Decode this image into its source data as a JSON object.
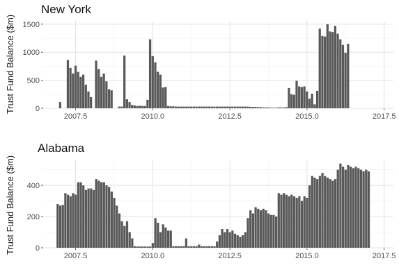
{
  "chart_data": [
    {
      "type": "bar",
      "title": "New York",
      "ylabel": "Trust Fund Balance ($m)",
      "xlabel": "",
      "xlim": [
        2006.45,
        2017.8
      ],
      "ylim": [
        0,
        1560
      ],
      "x_ticks": [
        2007.5,
        2010.0,
        2012.5,
        2015.0,
        2017.5
      ],
      "x_tick_labels": [
        "2007.5",
        "2010.0",
        "2012.5",
        "2015.0",
        "2017.5"
      ],
      "y_ticks": [
        0,
        500,
        1000,
        1500
      ],
      "y_tick_labels": [
        "0",
        "500",
        "1000",
        "1500"
      ],
      "grid": true,
      "bar_color": "#595959",
      "x_start": 2007.0,
      "x_step": 0.0833,
      "values": [
        110,
        0,
        0,
        860,
        720,
        620,
        760,
        650,
        560,
        600,
        420,
        300,
        200,
        0,
        850,
        700,
        560,
        620,
        480,
        340,
        320,
        0,
        0,
        30,
        30,
        940,
        160,
        110,
        60,
        50,
        40,
        45,
        40,
        40,
        150,
        1230,
        930,
        820,
        650,
        600,
        370,
        380,
        40,
        35,
        35,
        30,
        30,
        30,
        30,
        30,
        30,
        30,
        30,
        30,
        30,
        30,
        30,
        30,
        30,
        30,
        30,
        30,
        30,
        30,
        30,
        30,
        30,
        30,
        30,
        30,
        30,
        30,
        30,
        30,
        25,
        25,
        25,
        20,
        20,
        15,
        15,
        15,
        10,
        10,
        10,
        15,
        15,
        15,
        20,
        360,
        250,
        240,
        490,
        390,
        380,
        390,
        300,
        170,
        260,
        70,
        310,
        1420,
        1290,
        1280,
        1500,
        1370,
        1360,
        1470,
        1330,
        1230,
        1130,
        990,
        1150
      ]
    },
    {
      "type": "bar",
      "title": "Alabama",
      "ylabel": "Trust Fund Balance ($m)",
      "xlabel": "",
      "xlim": [
        2006.45,
        2017.8
      ],
      "ylim": [
        0,
        565
      ],
      "x_ticks": [
        2007.5,
        2010.0,
        2012.5,
        2015.0,
        2017.5
      ],
      "x_tick_labels": [
        "2007.5",
        "2010.0",
        "2012.5",
        "2015.0",
        "2017.5"
      ],
      "y_ticks": [
        0,
        200,
        400
      ],
      "y_tick_labels": [
        "0",
        "200",
        "400"
      ],
      "grid": true,
      "bar_color": "#595959",
      "x_start": 2006.92,
      "x_step": 0.0833,
      "values": [
        280,
        270,
        275,
        350,
        340,
        330,
        350,
        340,
        420,
        420,
        400,
        370,
        380,
        380,
        370,
        440,
        430,
        420,
        420,
        400,
        390,
        360,
        320,
        270,
        220,
        170,
        140,
        170,
        100,
        60,
        10,
        8,
        8,
        8,
        8,
        8,
        8,
        30,
        190,
        160,
        100,
        150,
        130,
        110,
        110,
        10,
        10,
        10,
        10,
        10,
        60,
        10,
        10,
        10,
        10,
        20,
        10,
        10,
        10,
        10,
        10,
        10,
        40,
        80,
        120,
        100,
        120,
        100,
        110,
        90,
        80,
        70,
        80,
        100,
        190,
        240,
        220,
        260,
        250,
        240,
        250,
        240,
        220,
        210,
        210,
        200,
        350,
        340,
        350,
        340,
        330,
        340,
        330,
        320,
        330,
        300,
        330,
        320,
        400,
        460,
        450,
        440,
        460,
        480,
        460,
        450,
        440,
        430,
        440,
        500,
        540,
        520,
        500,
        530,
        520,
        510,
        520,
        510,
        500,
        490,
        500,
        490
      ]
    }
  ]
}
